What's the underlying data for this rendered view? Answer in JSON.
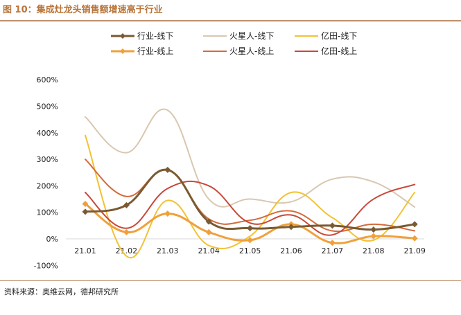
{
  "figure": {
    "title": "图 10：集成灶龙头销售额增速高于行业",
    "source": "资料来源：奥维云网，德邦研究所"
  },
  "chart_data": {
    "type": "line",
    "categories": [
      "21.01",
      "21.02",
      "21.03",
      "21.04",
      "21.05",
      "21.06",
      "21.07",
      "21.08",
      "21.09"
    ],
    "ylim": [
      -100,
      600
    ],
    "yticks": [
      "-100%",
      "0%",
      "100%",
      "200%",
      "300%",
      "400%",
      "500%",
      "600%"
    ],
    "ytick_values": [
      -100,
      0,
      100,
      200,
      300,
      400,
      500,
      600
    ],
    "grid": false,
    "legend_position": "top",
    "series": [
      {
        "name": "行业-线下",
        "color": "#7a5a32",
        "marker": "diamond",
        "width": 3,
        "values": [
          102,
          127,
          260,
          65,
          40,
          45,
          50,
          35,
          55
        ]
      },
      {
        "name": "火星人-线下",
        "color": "#d9c7b0",
        "marker": "none",
        "width": 2,
        "values": [
          460,
          325,
          485,
          150,
          150,
          140,
          225,
          215,
          120
        ]
      },
      {
        "name": "亿田-线下",
        "color": "#f2c232",
        "marker": "none",
        "width": 2,
        "values": [
          390,
          -65,
          145,
          -25,
          10,
          175,
          80,
          -5,
          175
        ]
      },
      {
        "name": "行业-线上",
        "color": "#f0a03a",
        "marker": "diamond",
        "width": 3,
        "values": [
          132,
          25,
          95,
          25,
          -5,
          55,
          -15,
          10,
          2
        ]
      },
      {
        "name": "火星人-线上",
        "color": "#d46b3c",
        "marker": "none",
        "width": 2,
        "values": [
          300,
          160,
          260,
          75,
          70,
          105,
          30,
          55,
          30
        ]
      },
      {
        "name": "亿田-线上",
        "color": "#c8483a",
        "marker": "none",
        "width": 2,
        "values": [
          175,
          40,
          190,
          200,
          60,
          90,
          15,
          150,
          205
        ]
      }
    ]
  }
}
